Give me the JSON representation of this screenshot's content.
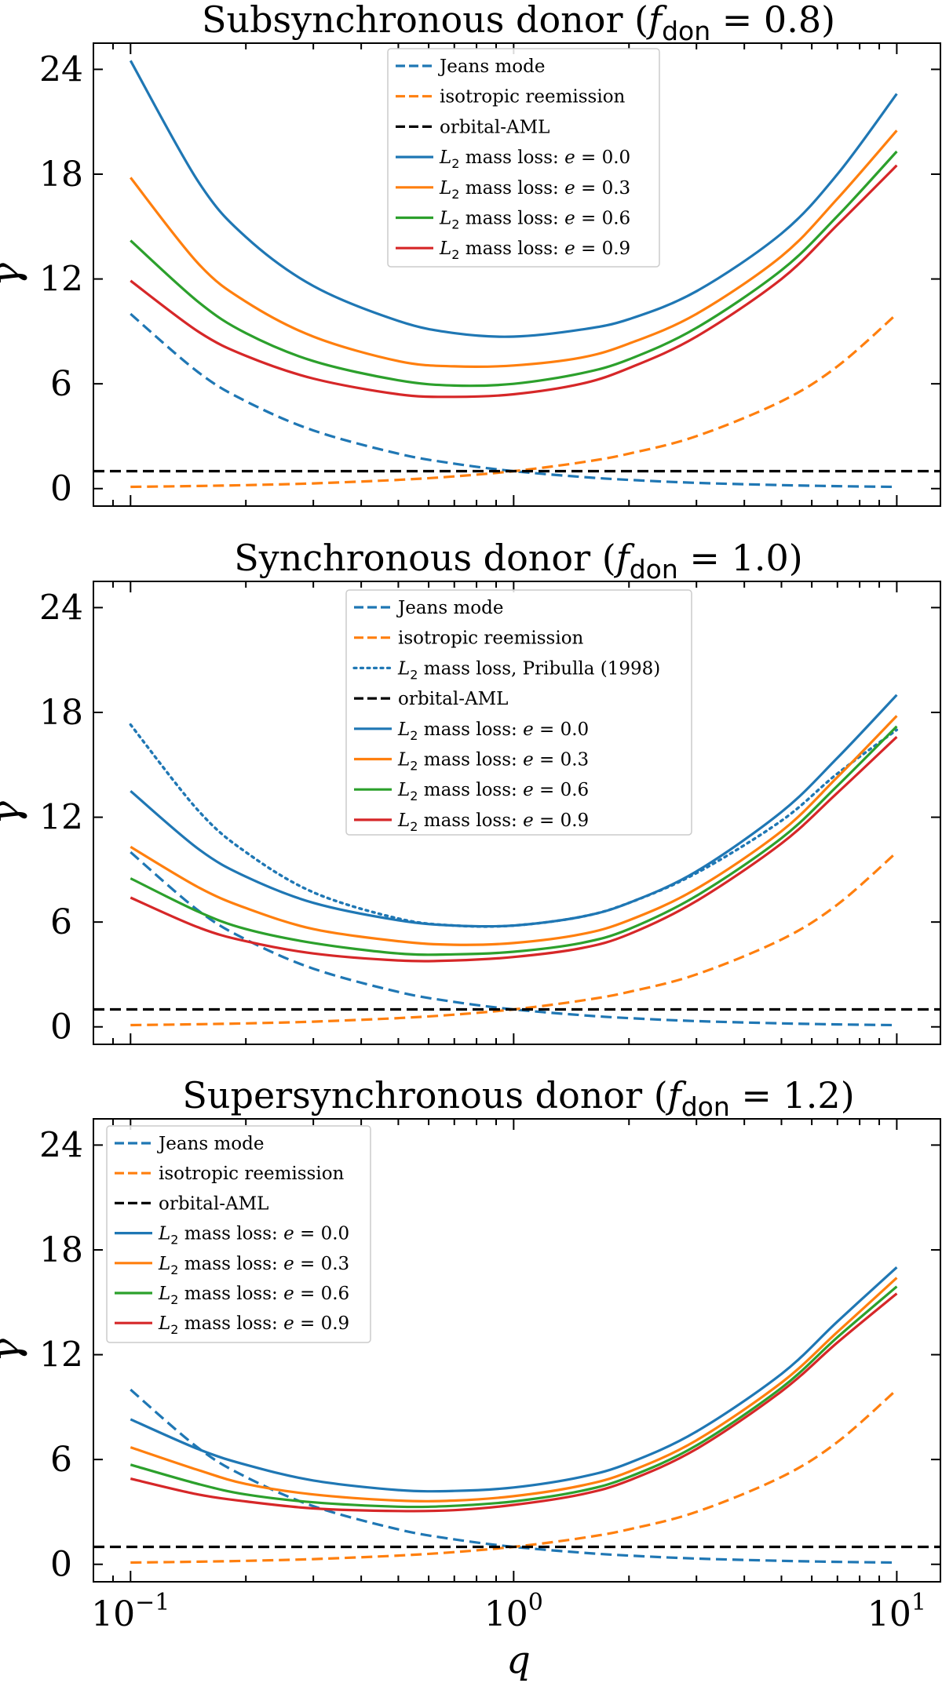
{
  "colors": {
    "jeans": "#1f77b4",
    "iso": "#ff7f0e",
    "aml": "#000000",
    "e0": "#1f77b4",
    "e3": "#ff7f0e",
    "e6": "#2ca02c",
    "e9": "#d62728",
    "pribulla": "#1f77b4"
  },
  "axes": {
    "xlabel": "q",
    "ylabel": "γ",
    "xtick_labels": [
      {
        "base": "10",
        "exp": "−1",
        "value": 0.1
      },
      {
        "base": "10",
        "exp": "0",
        "value": 1
      },
      {
        "base": "10",
        "exp": "1",
        "value": 10
      }
    ],
    "ytick_labels": [
      "0",
      "6",
      "12",
      "18",
      "24"
    ]
  },
  "legend_text": {
    "jeans": "Jeans mode",
    "iso": "isotropic reemission",
    "aml": "orbital-AML",
    "pribulla_prefix": " mass loss, Pribulla (1998)",
    "l2_prefix": " mass loss: ",
    "L": "L",
    "sub2": "2",
    "e": "e",
    "eq": " = "
  },
  "chart_data": [
    {
      "type": "line",
      "title": {
        "prefix": "Subsynchronous donor (",
        "f": "f",
        "sub": "don",
        "eq": " = 0.8)"
      },
      "xlabel": "",
      "ylabel": "γ",
      "xscale": "log",
      "xlim": [
        0.08,
        13
      ],
      "ylim": [
        -1,
        25.5
      ],
      "legend": "top-center",
      "series": [
        {
          "key": "jeans",
          "name": "Jeans mode",
          "style": "dashed",
          "color_key": "jeans",
          "x": [
            0.1,
            0.15,
            0.2,
            0.3,
            0.5,
            0.7,
            1,
            1.5,
            2,
            3,
            5,
            7,
            10
          ],
          "y": [
            10,
            6.67,
            5,
            3.33,
            2,
            1.43,
            1,
            0.67,
            0.5,
            0.33,
            0.2,
            0.14,
            0.1
          ]
        },
        {
          "key": "iso",
          "name": "isotropic reemission",
          "style": "dashed",
          "color_key": "iso",
          "x": [
            0.1,
            0.15,
            0.2,
            0.3,
            0.5,
            0.7,
            1,
            1.5,
            2,
            3,
            5,
            7,
            10
          ],
          "y": [
            0.1,
            0.15,
            0.2,
            0.3,
            0.5,
            0.7,
            1,
            1.5,
            2,
            3,
            5,
            7,
            10
          ]
        },
        {
          "key": "aml",
          "name": "orbital-AML",
          "style": "dashed",
          "color_key": "aml",
          "x": [
            0.08,
            13
          ],
          "y": [
            1,
            1
          ]
        },
        {
          "key": "e0",
          "name": "L2 mass loss: e = 0.0",
          "e_value": "0.0",
          "style": "solid",
          "color_key": "e0",
          "x": [
            0.1,
            0.15,
            0.2,
            0.3,
            0.5,
            0.7,
            1,
            1.5,
            2,
            3,
            5,
            7,
            10
          ],
          "y": [
            24.5,
            17.6,
            14.4,
            11.6,
            9.6,
            8.9,
            8.7,
            9.1,
            9.7,
            11.3,
            14.6,
            18.0,
            22.6
          ]
        },
        {
          "key": "e3",
          "name": "L2 mass loss: e = 0.3",
          "e_value": "0.3",
          "style": "solid",
          "color_key": "e3",
          "x": [
            0.1,
            0.15,
            0.2,
            0.3,
            0.5,
            0.7,
            1,
            1.5,
            2,
            3,
            5,
            7,
            10
          ],
          "y": [
            17.8,
            12.9,
            10.7,
            8.7,
            7.3,
            7.0,
            7.05,
            7.5,
            8.3,
            10.0,
            13.3,
            16.6,
            20.5
          ]
        },
        {
          "key": "e6",
          "name": "L2 mass loss: e = 0.6",
          "e_value": "0.6",
          "style": "solid",
          "color_key": "e6",
          "x": [
            0.1,
            0.15,
            0.2,
            0.3,
            0.5,
            0.7,
            1,
            1.5,
            2,
            3,
            5,
            7,
            10
          ],
          "y": [
            14.2,
            10.7,
            8.9,
            7.3,
            6.2,
            5.9,
            6.0,
            6.6,
            7.4,
            9.2,
            12.5,
            15.6,
            19.3
          ]
        },
        {
          "key": "e9",
          "name": "L2 mass loss: e = 0.9",
          "e_value": "0.9",
          "style": "solid",
          "color_key": "e9",
          "x": [
            0.1,
            0.15,
            0.2,
            0.3,
            0.5,
            0.7,
            1,
            1.5,
            2,
            3,
            5,
            7,
            10
          ],
          "y": [
            11.9,
            9.0,
            7.6,
            6.3,
            5.4,
            5.25,
            5.4,
            6.0,
            6.9,
            8.7,
            12.0,
            15.1,
            18.5
          ]
        }
      ]
    },
    {
      "type": "line",
      "title": {
        "prefix": "Synchronous donor (",
        "f": "f",
        "sub": "don",
        "eq": " = 1.0)"
      },
      "xlabel": "",
      "ylabel": "γ",
      "xscale": "log",
      "xlim": [
        0.08,
        13
      ],
      "ylim": [
        -1,
        25.5
      ],
      "legend": "top-center",
      "series": [
        {
          "key": "jeans",
          "name": "Jeans mode",
          "style": "dashed",
          "color_key": "jeans",
          "x": [
            0.1,
            0.15,
            0.2,
            0.3,
            0.5,
            0.7,
            1,
            1.5,
            2,
            3,
            5,
            7,
            10
          ],
          "y": [
            10,
            6.67,
            5,
            3.33,
            2,
            1.43,
            1,
            0.67,
            0.5,
            0.33,
            0.2,
            0.14,
            0.1
          ]
        },
        {
          "key": "iso",
          "name": "isotropic reemission",
          "style": "dashed",
          "color_key": "iso",
          "x": [
            0.1,
            0.15,
            0.2,
            0.3,
            0.5,
            0.7,
            1,
            1.5,
            2,
            3,
            5,
            7,
            10
          ],
          "y": [
            0.1,
            0.15,
            0.2,
            0.3,
            0.5,
            0.7,
            1,
            1.5,
            2,
            3,
            5,
            7,
            10
          ]
        },
        {
          "key": "pribulla",
          "name": "L2 mass loss, Pribulla (1998)",
          "style": "dotted",
          "color_key": "pribulla",
          "x": [
            0.1,
            0.15,
            0.2,
            0.3,
            0.5,
            0.7,
            1,
            1.5,
            2,
            3,
            5,
            7,
            10
          ],
          "y": [
            17.3,
            12.4,
            10.0,
            7.7,
            6.2,
            5.8,
            5.8,
            6.3,
            7.1,
            8.8,
            11.8,
            14.5,
            17.0
          ]
        },
        {
          "key": "aml",
          "name": "orbital-AML",
          "style": "dashed",
          "color_key": "aml",
          "x": [
            0.08,
            13
          ],
          "y": [
            1,
            1
          ]
        },
        {
          "key": "e0",
          "name": "L2 mass loss: e = 0.0",
          "e_value": "0.0",
          "style": "solid",
          "color_key": "e0",
          "x": [
            0.1,
            0.15,
            0.2,
            0.3,
            0.5,
            0.7,
            1,
            1.5,
            2,
            3,
            5,
            7,
            10
          ],
          "y": [
            13.5,
            10.2,
            8.6,
            7.1,
            6.1,
            5.8,
            5.8,
            6.3,
            7.1,
            8.9,
            12.3,
            15.4,
            19.0
          ]
        },
        {
          "key": "e3",
          "name": "L2 mass loss: e = 0.3",
          "e_value": "0.3",
          "style": "solid",
          "color_key": "e3",
          "x": [
            0.1,
            0.15,
            0.2,
            0.3,
            0.5,
            0.7,
            1,
            1.5,
            2,
            3,
            5,
            7,
            10
          ],
          "y": [
            10.3,
            8.0,
            6.8,
            5.6,
            4.9,
            4.7,
            4.8,
            5.3,
            6.1,
            7.9,
            11.2,
            14.3,
            17.8
          ]
        },
        {
          "key": "e6",
          "name": "L2 mass loss: e = 0.6",
          "e_value": "0.6",
          "style": "solid",
          "color_key": "e6",
          "x": [
            0.1,
            0.15,
            0.2,
            0.3,
            0.5,
            0.7,
            1,
            1.5,
            2,
            3,
            5,
            7,
            10
          ],
          "y": [
            8.5,
            6.6,
            5.6,
            4.8,
            4.2,
            4.15,
            4.3,
            4.8,
            5.6,
            7.5,
            10.8,
            13.8,
            17.2
          ]
        },
        {
          "key": "e9",
          "name": "L2 mass loss: e = 0.9",
          "e_value": "0.9",
          "style": "solid",
          "color_key": "e9",
          "x": [
            0.1,
            0.15,
            0.2,
            0.3,
            0.5,
            0.7,
            1,
            1.5,
            2,
            3,
            5,
            7,
            10
          ],
          "y": [
            7.4,
            5.7,
            4.9,
            4.2,
            3.8,
            3.8,
            4.0,
            4.5,
            5.3,
            7.2,
            10.5,
            13.4,
            16.6
          ]
        }
      ]
    },
    {
      "type": "line",
      "title": {
        "prefix": "Supersynchronous donor (",
        "f": "f",
        "sub": "don",
        "eq": " = 1.2)"
      },
      "xlabel": "q",
      "ylabel": "γ",
      "xscale": "log",
      "xlim": [
        0.08,
        13
      ],
      "ylim": [
        -1,
        25.5
      ],
      "legend": "top-left",
      "series": [
        {
          "key": "jeans",
          "name": "Jeans mode",
          "style": "dashed",
          "color_key": "jeans",
          "x": [
            0.1,
            0.15,
            0.2,
            0.3,
            0.5,
            0.7,
            1,
            1.5,
            2,
            3,
            5,
            7,
            10
          ],
          "y": [
            10,
            6.67,
            5,
            3.33,
            2,
            1.43,
            1,
            0.67,
            0.5,
            0.33,
            0.2,
            0.14,
            0.1
          ]
        },
        {
          "key": "iso",
          "name": "isotropic reemission",
          "style": "dashed",
          "color_key": "iso",
          "x": [
            0.1,
            0.15,
            0.2,
            0.3,
            0.5,
            0.7,
            1,
            1.5,
            2,
            3,
            5,
            7,
            10
          ],
          "y": [
            0.1,
            0.15,
            0.2,
            0.3,
            0.5,
            0.7,
            1,
            1.5,
            2,
            3,
            5,
            7,
            10
          ]
        },
        {
          "key": "aml",
          "name": "orbital-AML",
          "style": "dashed",
          "color_key": "aml",
          "x": [
            0.08,
            13
          ],
          "y": [
            1,
            1
          ]
        },
        {
          "key": "e0",
          "name": "L2 mass loss: e = 0.0",
          "e_value": "0.0",
          "style": "solid",
          "color_key": "e0",
          "x": [
            0.1,
            0.15,
            0.2,
            0.3,
            0.5,
            0.7,
            1,
            1.5,
            2,
            3,
            5,
            7,
            10
          ],
          "y": [
            8.3,
            6.6,
            5.7,
            4.8,
            4.25,
            4.2,
            4.4,
            5.0,
            5.8,
            7.6,
            10.9,
            13.9,
            17.0
          ]
        },
        {
          "key": "e3",
          "name": "L2 mass loss: e = 0.3",
          "e_value": "0.3",
          "style": "solid",
          "color_key": "e3",
          "x": [
            0.1,
            0.15,
            0.2,
            0.3,
            0.5,
            0.7,
            1,
            1.5,
            2,
            3,
            5,
            7,
            10
          ],
          "y": [
            6.7,
            5.4,
            4.6,
            4.0,
            3.65,
            3.65,
            3.9,
            4.5,
            5.3,
            7.1,
            10.4,
            13.3,
            16.4
          ]
        },
        {
          "key": "e6",
          "name": "L2 mass loss: e = 0.6",
          "e_value": "0.6",
          "style": "solid",
          "color_key": "e6",
          "x": [
            0.1,
            0.15,
            0.2,
            0.3,
            0.5,
            0.7,
            1,
            1.5,
            2,
            3,
            5,
            7,
            10
          ],
          "y": [
            5.7,
            4.6,
            4.0,
            3.55,
            3.3,
            3.35,
            3.6,
            4.2,
            5.0,
            6.8,
            10.1,
            13.0,
            15.9
          ]
        },
        {
          "key": "e9",
          "name": "L2 mass loss: e = 0.9",
          "e_value": "0.9",
          "style": "solid",
          "color_key": "e9",
          "x": [
            0.1,
            0.15,
            0.2,
            0.3,
            0.5,
            0.7,
            1,
            1.5,
            2,
            3,
            5,
            7,
            10
          ],
          "y": [
            4.9,
            4.0,
            3.6,
            3.2,
            3.05,
            3.1,
            3.4,
            4.0,
            4.8,
            6.6,
            9.9,
            12.7,
            15.5
          ]
        }
      ]
    }
  ]
}
